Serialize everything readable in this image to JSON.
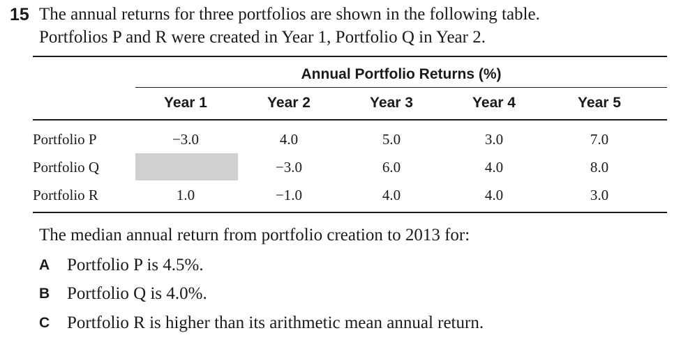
{
  "question": {
    "number": "15",
    "stem_line1": "The annual returns for three portfolios are shown in the following table.",
    "stem_line2": "Portfolios P and R were created in Year 1, Portfolio Q in Year 2."
  },
  "table": {
    "title": "Annual Portfolio Returns (%)",
    "columns": [
      "Year 1",
      "Year 2",
      "Year 3",
      "Year 4",
      "Year 5"
    ],
    "rows": [
      {
        "label": "Portfolio P",
        "values": [
          "−3.0",
          "4.0",
          "5.0",
          "3.0",
          "7.0"
        ]
      },
      {
        "label": "Portfolio Q",
        "values": [
          "",
          "−3.0",
          "6.0",
          "4.0",
          "8.0"
        ]
      },
      {
        "label": "Portfolio R",
        "values": [
          "1.0",
          "−1.0",
          "4.0",
          "4.0",
          "3.0"
        ]
      }
    ],
    "shaded_cell_color": "#d0d0d0"
  },
  "prompt": "The median annual return from portfolio creation to 2013 for:",
  "options": [
    {
      "letter": "A",
      "text": "Portfolio P is 4.5%."
    },
    {
      "letter": "B",
      "text": "Portfolio Q is 4.0%."
    },
    {
      "letter": "C",
      "text": "Portfolio R is higher than its arithmetic mean annual return."
    }
  ]
}
